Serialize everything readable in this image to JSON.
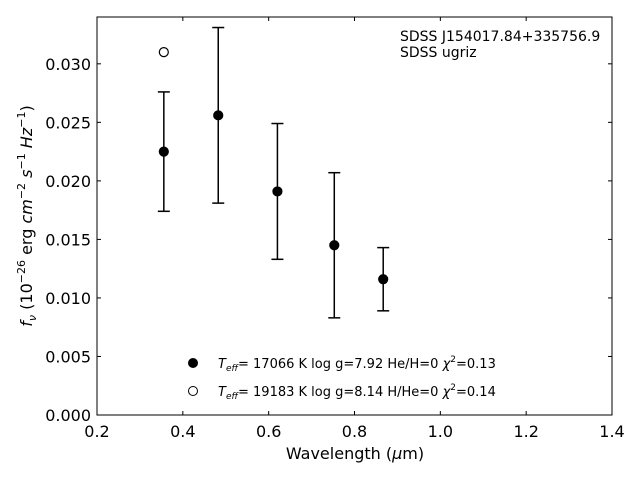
{
  "chart_data": {
    "type": "scatter",
    "annotation": [
      "SDSS J154017.84+335756.9",
      "SDSS ugriz"
    ],
    "xlabel": "Wavelength (μm)",
    "ylabel": "fν (10⁻²⁶ erg cm⁻² s⁻¹ Hz⁻¹)",
    "xlim": [
      0.2,
      1.4
    ],
    "ylim": [
      0.0,
      0.034
    ],
    "x_ticks": [
      0.2,
      0.4,
      0.6,
      0.8,
      1.0,
      1.2,
      1.4
    ],
    "x_tick_labels": [
      "0.2",
      "0.4",
      "0.6",
      "0.8",
      "1.0",
      "1.2",
      "1.4"
    ],
    "y_ticks": [
      0.0,
      0.005,
      0.01,
      0.015,
      0.02,
      0.025,
      0.03
    ],
    "y_tick_labels": [
      "0.000",
      "0.005",
      "0.010",
      "0.015",
      "0.020",
      "0.025",
      "0.030"
    ],
    "grid": false,
    "legend_position": "bottom-center",
    "observed": {
      "x": [
        0.3557,
        0.4825,
        0.6204,
        0.7529,
        0.8669
      ],
      "y": [
        0.0225,
        0.0256,
        0.0191,
        0.0145,
        0.0116
      ],
      "yerr": [
        0.0051,
        0.0075,
        0.0058,
        0.0062,
        0.0027
      ],
      "color": "#000000"
    },
    "series": [
      {
        "marker": "filled",
        "color": "#000000",
        "name": "Teff= 17066 K  log g=7.92  He/H=0  χ²=0.13",
        "x": [
          0.3557,
          0.4825,
          0.6204,
          0.7529,
          0.8669
        ],
        "y": [
          0.0225,
          0.0256,
          0.0191,
          0.0145,
          0.0116
        ]
      },
      {
        "marker": "open",
        "color": "#000000",
        "name": "Teff= 19183 K  log g=8.14  H/He=0  χ²=0.14",
        "x": [
          0.3557
        ],
        "y": [
          0.031
        ]
      }
    ]
  }
}
